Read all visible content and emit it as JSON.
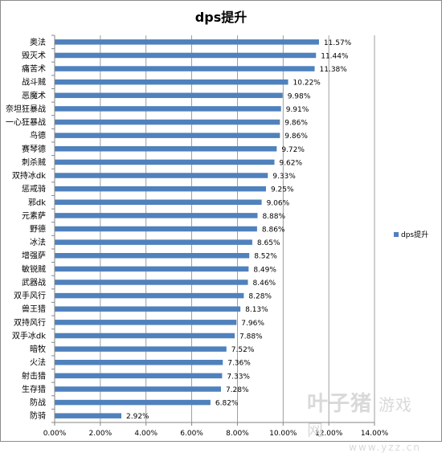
{
  "chart_data": {
    "type": "bar",
    "orientation": "horizontal",
    "title": "dps提升",
    "categories": [
      "奥法",
      "毁灭术",
      "痛苦术",
      "战斗贼",
      "恶魔术",
      "奈坦狂暴战",
      "一心狂暴战",
      "鸟德",
      "赛琴德",
      "刺杀贼",
      "双持冰dk",
      "惩戒骑",
      "邪dk",
      "元素萨",
      "野德",
      "冰法",
      "增强萨",
      "敏锐贼",
      "武器战",
      "双手风行",
      "兽王猎",
      "双持风行",
      "双手冰dk",
      "暗牧",
      "火法",
      "射击猎",
      "生存猎",
      "防战",
      "防骑"
    ],
    "series": [
      {
        "name": "dps提升",
        "values": [
          11.57,
          11.44,
          11.38,
          10.22,
          9.98,
          9.91,
          9.86,
          9.86,
          9.72,
          9.62,
          9.33,
          9.25,
          9.06,
          8.88,
          8.86,
          8.65,
          8.52,
          8.49,
          8.46,
          8.28,
          8.13,
          7.96,
          7.88,
          7.52,
          7.36,
          7.33,
          7.28,
          6.82,
          2.92
        ],
        "color": "#4f81bd"
      }
    ],
    "data_labels": [
      "11.57%",
      "11.44%",
      "11.38%",
      "10.22%",
      "9.98%",
      "9.91%",
      "9.86%",
      "9.86%",
      "9.72%",
      "9.62%",
      "9.33%",
      "9.25%",
      "9.06%",
      "8.88%",
      "8.86%",
      "8.65%",
      "8.52%",
      "8.49%",
      "8.46%",
      "8.28%",
      "8.13%",
      "7.96%",
      "7.88%",
      "7.52%",
      "7.36%",
      "7.33%",
      "7.28%",
      "6.82%",
      "2.92%"
    ],
    "x_ticks": [
      "0.00%",
      "2.00%",
      "4.00%",
      "6.00%",
      "8.00%",
      "10.00%",
      "12.00%",
      "14.00%"
    ],
    "xlim": [
      0,
      14
    ],
    "xlabel": "",
    "ylabel": "",
    "grid": true,
    "legend": {
      "entries": [
        "dps提升"
      ],
      "placement": "right"
    }
  },
  "watermark": {
    "brand": "叶子猪",
    "sub": "游戏网",
    "url": "www.yzz.cn"
  }
}
